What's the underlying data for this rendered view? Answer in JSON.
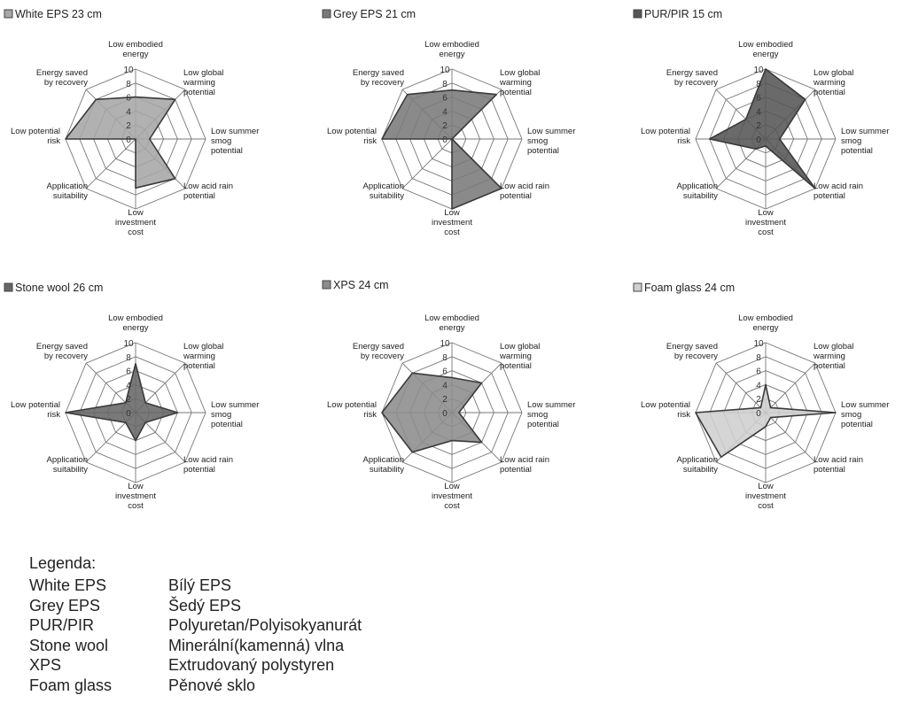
{
  "chart_data": [
    {
      "type": "radar",
      "legend": "White EPS 23 cm",
      "color": "#a6a6a6",
      "axes": [
        "Low embodied energy",
        "Low global warming potential",
        "Low summer smog potential",
        "Low acid rain potential",
        "Low investment cost",
        "Application suitability",
        "Low potential risk",
        "Energy saved by recovery"
      ],
      "values": [
        6,
        8,
        2,
        8,
        7,
        0,
        10,
        8
      ],
      "rlim": [
        0,
        10
      ],
      "ticks": [
        "0",
        "2",
        "4",
        "6",
        "8",
        "10"
      ]
    },
    {
      "type": "radar",
      "legend": "Grey EPS 21 cm",
      "color": "#7a7a7a",
      "axes": [
        "Low embodied energy",
        "Low global warming potential",
        "Low summer smog potential",
        "Low acid rain potential",
        "Low investment cost",
        "Application suitability",
        "Low potential risk",
        "Energy saved by recovery"
      ],
      "values": [
        7,
        9,
        0,
        10,
        10,
        0,
        10,
        9
      ],
      "rlim": [
        0,
        10
      ],
      "ticks": [
        "0",
        "2",
        "4",
        "6",
        "8",
        "10"
      ]
    },
    {
      "type": "radar",
      "legend": "PUR/PIR 15 cm",
      "color": "#555555",
      "axes": [
        "Low embodied energy",
        "Low global warming potential",
        "Low summer smog potential",
        "Low acid rain potential",
        "Low investment cost",
        "Application suitability",
        "Low potential risk",
        "Energy saved by recovery"
      ],
      "values": [
        10,
        8,
        2,
        10,
        1,
        2,
        8,
        4
      ],
      "rlim": [
        0,
        10
      ],
      "ticks": [
        "0",
        "2",
        "4",
        "6",
        "8",
        "10"
      ]
    },
    {
      "type": "radar",
      "legend": "Stone wool 26 cm",
      "color": "#666666",
      "axes": [
        "Low embodied energy",
        "Low global warming potential",
        "Low summer smog potential",
        "Low acid rain potential",
        "Low investment cost",
        "Application suitability",
        "Low potential risk",
        "Energy saved by recovery"
      ],
      "values": [
        7,
        2,
        6,
        2,
        4,
        2,
        10,
        2
      ],
      "rlim": [
        0,
        10
      ],
      "ticks": [
        "0",
        "2",
        "4",
        "6",
        "8",
        "10"
      ]
    },
    {
      "type": "radar",
      "legend": "XPS 24 cm",
      "color": "#8c8c8c",
      "axes": [
        "Low embodied energy",
        "Low global warming potential",
        "Low summer smog potential",
        "Low acid rain potential",
        "Low investment cost",
        "Application suitability",
        "Low potential risk",
        "Energy saved by recovery"
      ],
      "values": [
        5,
        6,
        1,
        6,
        4,
        8,
        10,
        8
      ],
      "rlim": [
        0,
        10
      ],
      "ticks": [
        "0",
        "2",
        "4",
        "6",
        "8",
        "10"
      ]
    },
    {
      "type": "radar",
      "legend": "Foam glass 24 cm",
      "color": "#cfcfcf",
      "axes": [
        "Low embodied energy",
        "Low global warming potential",
        "Low summer smog potential",
        "Low acid rain potential",
        "Low investment cost",
        "Application suitability",
        "Low potential risk",
        "Energy saved by recovery"
      ],
      "values": [
        4,
        1,
        10,
        1,
        2,
        9,
        10,
        1
      ],
      "rlim": [
        0,
        10
      ],
      "ticks": [
        "0",
        "2",
        "4",
        "6",
        "8",
        "10"
      ]
    }
  ],
  "legend_block": {
    "title": "Legenda:",
    "rows": [
      {
        "en": "White EPS",
        "cz": "Bílý EPS"
      },
      {
        "en": "Grey EPS",
        "cz": "Šedý EPS"
      },
      {
        "en": "PUR/PIR",
        "cz": "Polyuretan/Polyisokyanurát"
      },
      {
        "en": "Stone wool",
        "cz": "Minerální(kamenná) vlna"
      },
      {
        "en": "XPS",
        "cz": "Extrudovaný polystyren"
      },
      {
        "en": "Foam glass",
        "cz": "Pěnové sklo"
      }
    ]
  }
}
